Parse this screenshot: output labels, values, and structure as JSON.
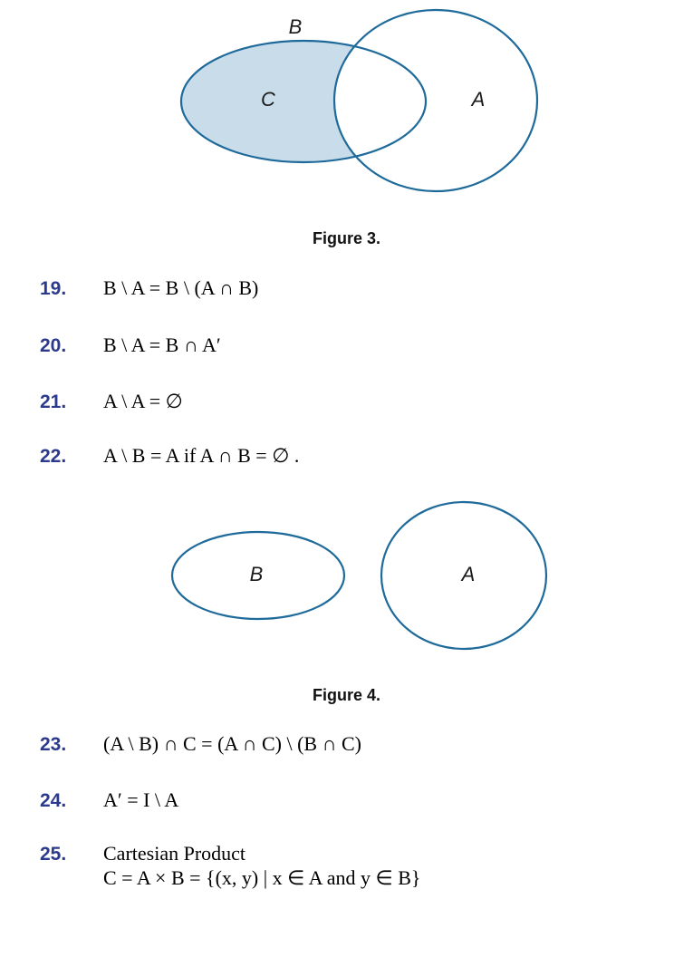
{
  "figure3": {
    "caption": "Figure 3.",
    "labels": {
      "B": "B",
      "C": "C",
      "A": "A"
    },
    "colors": {
      "stroke": "#1e6a9a",
      "fill": "#c9dce9"
    }
  },
  "figure4": {
    "caption": "Figure 4.",
    "labels": {
      "B": "B",
      "A": "A"
    },
    "colors": {
      "stroke": "#1e6a9a"
    }
  },
  "items": [
    {
      "number": "19.",
      "formula": "B \\ A = B \\ (A ∩ B)"
    },
    {
      "number": "20.",
      "formula": "B \\ A = B ∩ A′"
    },
    {
      "number": "21.",
      "formula": "A \\ A = ∅"
    },
    {
      "number": "22.",
      "formula": "A \\ B = A  if  A ∩ B = ∅ ."
    },
    {
      "number": "23.",
      "formula": "(A \\ B) ∩ C = (A ∩ C) \\ (B ∩ C)"
    },
    {
      "number": "24.",
      "formula": "A′ = I \\ A"
    },
    {
      "number": "25.",
      "title": "Cartesian Product",
      "formula": "C = A × B = {(x, y) | x ∈ A and y ∈ B}"
    }
  ]
}
